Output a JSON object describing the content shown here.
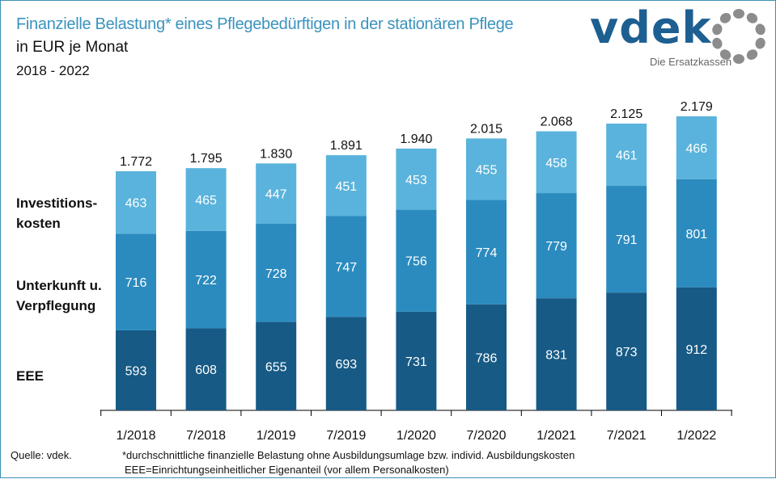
{
  "header": {
    "title": "Finanzielle Belastung* eines Pflegebedürftigen in der stationären Pflege",
    "subtitle": "in EUR je Monat",
    "years": "2018 - 2022"
  },
  "logo": {
    "name": "vdek",
    "tagline": "Die Ersatzkassen"
  },
  "legend": [
    {
      "label_line1": "Investitions-",
      "label_line2": "kosten"
    },
    {
      "label_line1": "Unterkunft u.",
      "label_line2": "Verpflegung"
    },
    {
      "label_line1": "EEE",
      "label_line2": ""
    }
  ],
  "footer": {
    "source": "Quelle: vdek.",
    "note1": "*durchschnittliche finanzielle Belastung ohne Ausbildungsumlage bzw. individ. Ausbildungskosten",
    "note2": "EEE=Einrichtungseinheitlicher Eigenanteil (vor allem Personalkosten)"
  },
  "chart_data": {
    "type": "bar",
    "stacked": true,
    "title": "Finanzielle Belastung* eines Pflegebedürftigen in der stationären Pflege",
    "subtitle": "in EUR je Monat, 2018 - 2022",
    "xlabel": "",
    "ylabel": "EUR je Monat",
    "ylim": [
      0,
      2400
    ],
    "grid": false,
    "legend_position": "left",
    "categories": [
      "1/2018",
      "7/2018",
      "1/2019",
      "7/2019",
      "1/2020",
      "7/2020",
      "1/2021",
      "7/2021",
      "1/2022"
    ],
    "series": [
      {
        "name": "EEE",
        "color": "#175a85",
        "values": [
          593,
          608,
          655,
          693,
          731,
          786,
          831,
          873,
          912
        ]
      },
      {
        "name": "Unterkunft u. Verpflegung",
        "color": "#2b8bbf",
        "values": [
          716,
          722,
          728,
          747,
          756,
          774,
          779,
          791,
          801
        ]
      },
      {
        "name": "Investitionskosten",
        "color": "#5ab3dc",
        "values": [
          463,
          465,
          447,
          451,
          453,
          455,
          458,
          461,
          466
        ]
      }
    ],
    "totals": [
      "1.772",
      "1.795",
      "1.830",
      "1.891",
      "1.940",
      "2.015",
      "2.068",
      "2.125",
      "2.179"
    ]
  }
}
